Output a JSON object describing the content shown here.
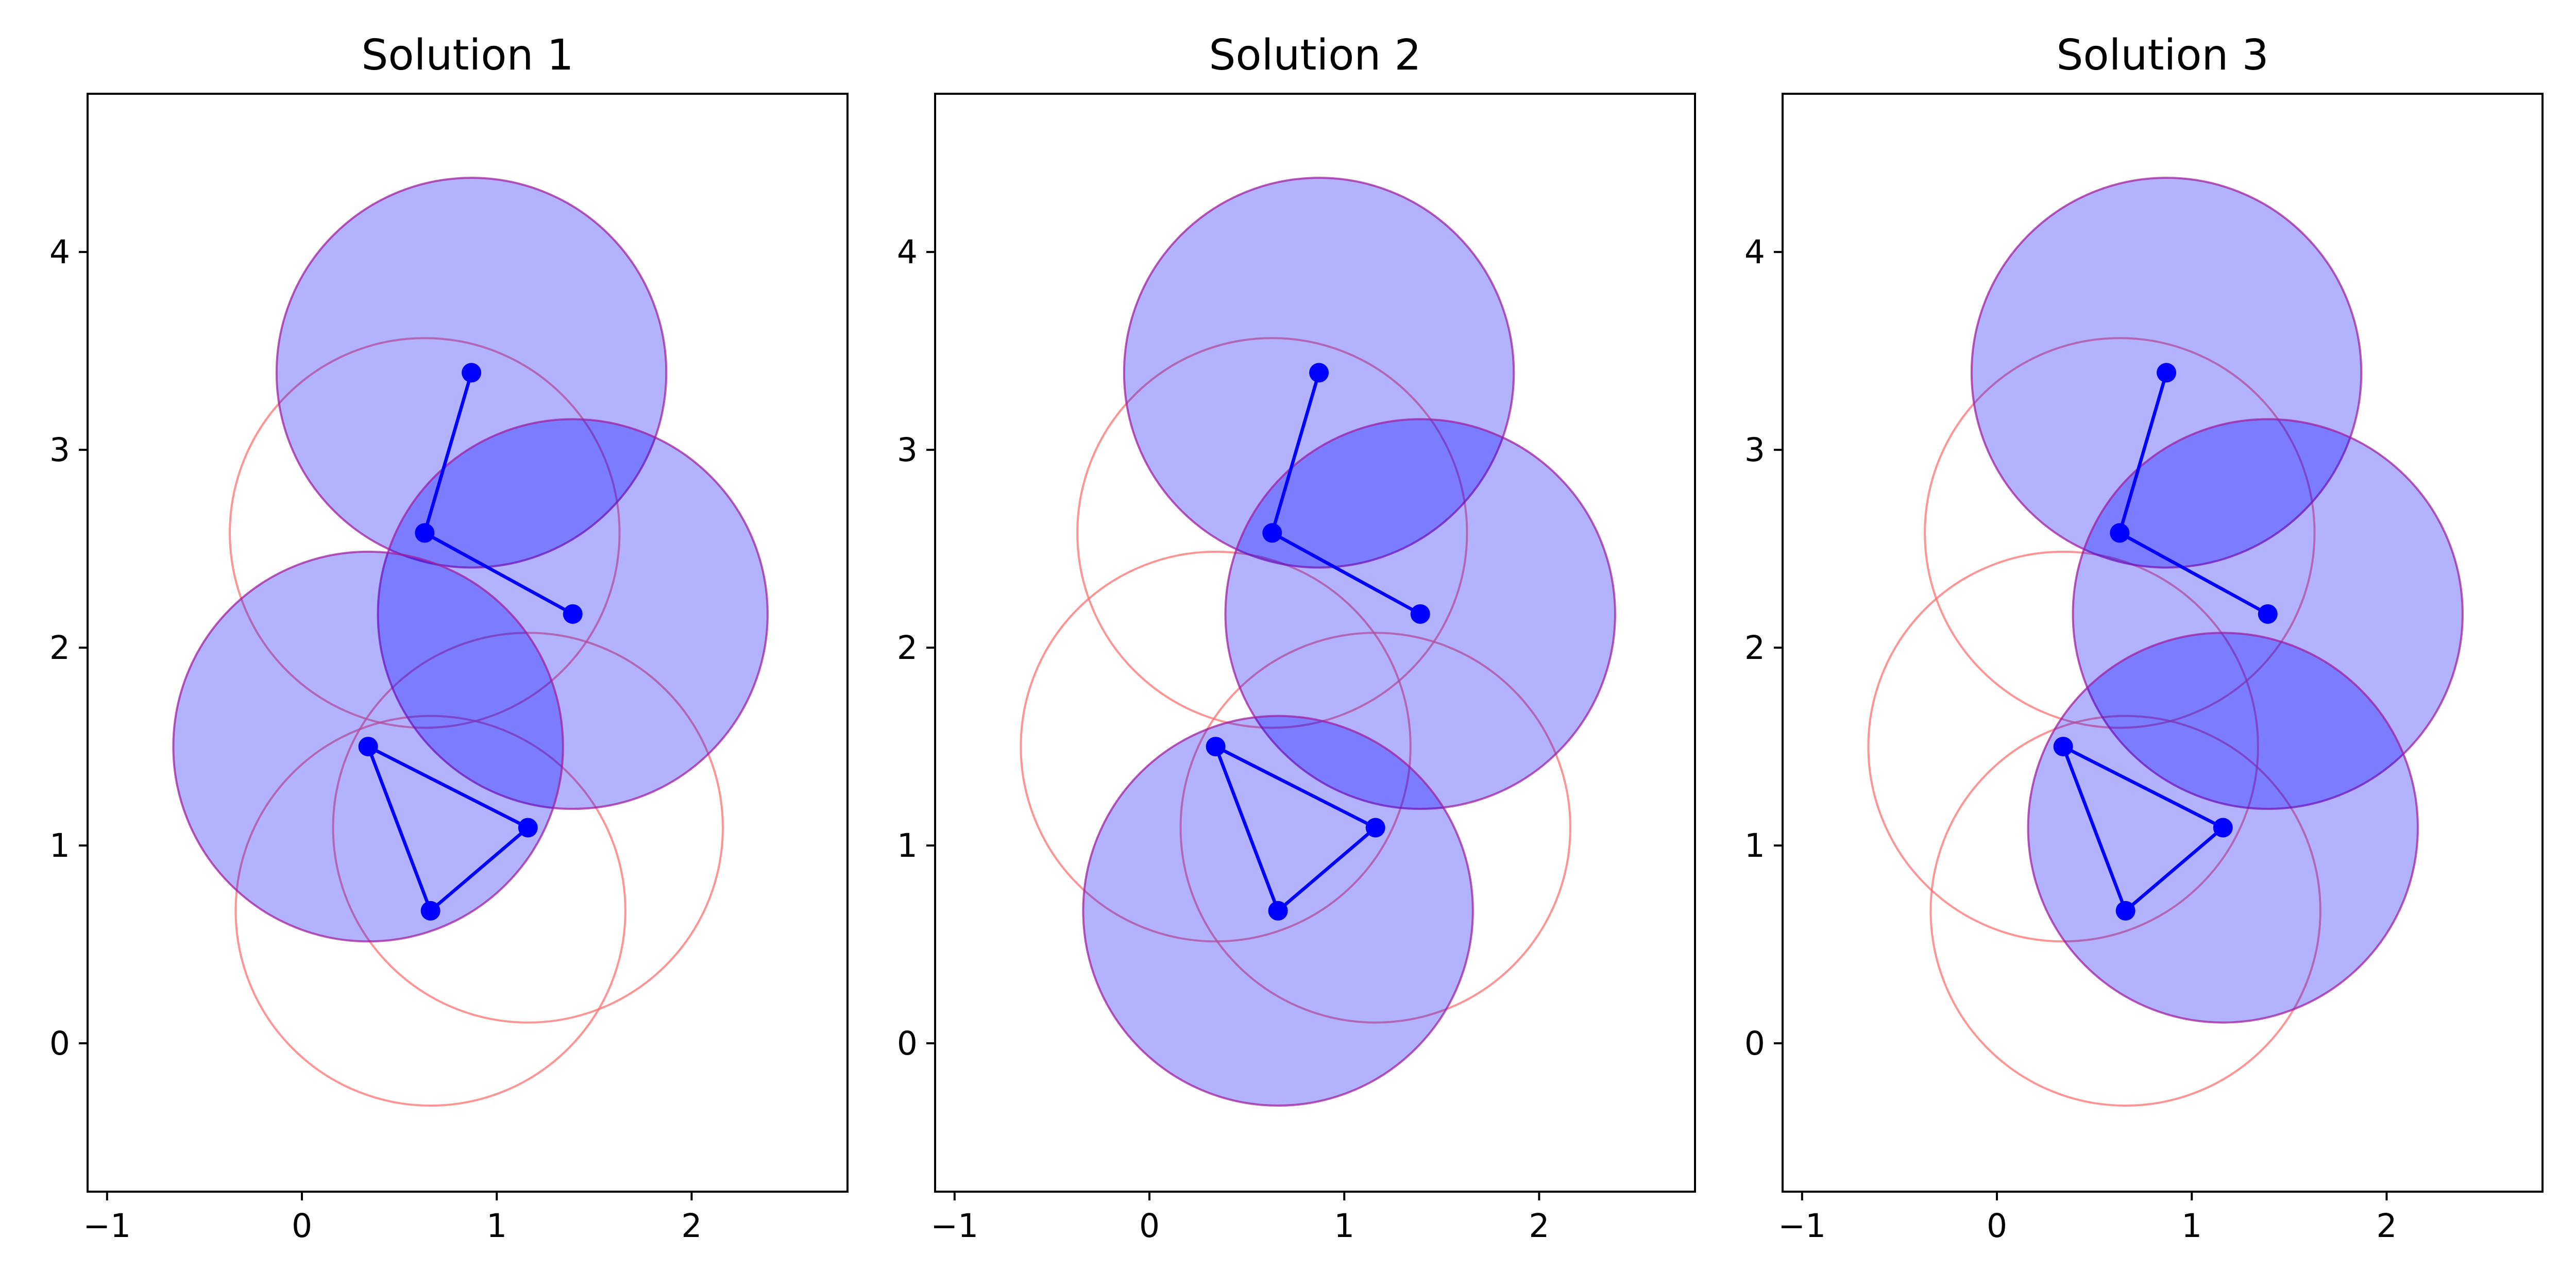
{
  "chart_data": [
    {
      "type": "scatter",
      "title": "Solution 1",
      "xlim": [
        -1.1,
        2.8
      ],
      "ylim": [
        -0.75,
        4.8
      ],
      "xticks": [
        -1,
        0,
        1,
        2
      ],
      "yticks": [
        0,
        1,
        2,
        3,
        4
      ],
      "radius": 1.0,
      "points": [
        [
          0.87,
          3.39
        ],
        [
          0.63,
          2.58
        ],
        [
          1.39,
          2.17
        ],
        [
          0.34,
          1.5
        ],
        [
          1.16,
          1.09
        ],
        [
          0.66,
          0.67
        ]
      ],
      "edges": [
        [
          0,
          1
        ],
        [
          1,
          2
        ],
        [
          3,
          4
        ],
        [
          4,
          5
        ],
        [
          5,
          3
        ]
      ],
      "selected": [
        0,
        2,
        3
      ]
    },
    {
      "type": "scatter",
      "title": "Solution 2",
      "xlim": [
        -1.1,
        2.8
      ],
      "ylim": [
        -0.75,
        4.8
      ],
      "xticks": [
        -1,
        0,
        1,
        2
      ],
      "yticks": [
        0,
        1,
        2,
        3,
        4
      ],
      "radius": 1.0,
      "points": [
        [
          0.87,
          3.39
        ],
        [
          0.63,
          2.58
        ],
        [
          1.39,
          2.17
        ],
        [
          0.34,
          1.5
        ],
        [
          1.16,
          1.09
        ],
        [
          0.66,
          0.67
        ]
      ],
      "edges": [
        [
          0,
          1
        ],
        [
          1,
          2
        ],
        [
          3,
          4
        ],
        [
          4,
          5
        ],
        [
          5,
          3
        ]
      ],
      "selected": [
        0,
        2,
        5
      ]
    },
    {
      "type": "scatter",
      "title": "Solution 3",
      "xlim": [
        -1.1,
        2.8
      ],
      "ylim": [
        -0.75,
        4.8
      ],
      "xticks": [
        -1,
        0,
        1,
        2
      ],
      "yticks": [
        0,
        1,
        2,
        3,
        4
      ],
      "radius": 1.0,
      "points": [
        [
          0.87,
          3.39
        ],
        [
          0.63,
          2.58
        ],
        [
          1.39,
          2.17
        ],
        [
          0.34,
          1.5
        ],
        [
          1.16,
          1.09
        ],
        [
          0.66,
          0.67
        ]
      ],
      "edges": [
        [
          0,
          1
        ],
        [
          1,
          2
        ],
        [
          3,
          4
        ],
        [
          4,
          5
        ],
        [
          5,
          3
        ]
      ],
      "selected": [
        0,
        2,
        4
      ]
    }
  ],
  "colors": {
    "point": "#0000ff",
    "edge": "#0000ff",
    "selected_fill": "#0000ff",
    "selected_fill_opacity": 0.3,
    "selected_edge": "#a020a0",
    "unselected_edge": "#ff7070"
  }
}
